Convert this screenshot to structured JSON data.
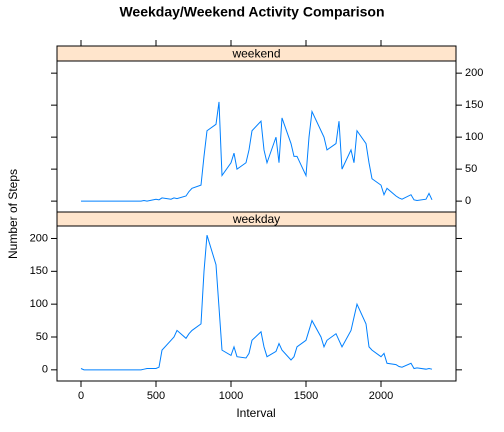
{
  "chart_data": {
    "type": "line",
    "title": "Weekday/Weekend Activity Comparison",
    "x_label": "Interval",
    "y_label": "Number of Steps",
    "color": "#0080ff",
    "strip_color": "#ffe5cc",
    "xlim": [
      -160,
      2500
    ],
    "ylim": [
      -17,
      219
    ],
    "xticks": [
      0,
      500,
      1000,
      1500,
      2000
    ],
    "yticks": [
      0,
      50,
      100,
      150,
      200
    ],
    "x": [
      0,
      20,
      40,
      100,
      120,
      140,
      200,
      220,
      240,
      300,
      320,
      340,
      400,
      420,
      440,
      500,
      520,
      540,
      600,
      620,
      640,
      700,
      720,
      740,
      800,
      820,
      840,
      900,
      920,
      940,
      1000,
      1020,
      1040,
      1100,
      1120,
      1140,
      1200,
      1220,
      1240,
      1300,
      1320,
      1340,
      1400,
      1420,
      1440,
      1500,
      1520,
      1540,
      1600,
      1620,
      1640,
      1700,
      1720,
      1740,
      1800,
      1820,
      1840,
      1900,
      1920,
      1940,
      2000,
      2020,
      2040,
      2100,
      2120,
      2140,
      2200,
      2220,
      2240,
      2300,
      2320,
      2340
    ],
    "panels": [
      {
        "name": "weekend",
        "values": [
          0,
          0,
          0,
          0,
          0,
          0,
          0,
          0,
          0,
          0,
          0,
          0,
          0,
          1,
          0,
          3,
          2,
          5,
          3,
          5,
          4,
          8,
          15,
          20,
          25,
          70,
          110,
          120,
          155,
          40,
          60,
          75,
          50,
          60,
          80,
          110,
          125,
          80,
          60,
          100,
          60,
          130,
          90,
          70,
          70,
          40,
          100,
          140,
          110,
          100,
          80,
          90,
          125,
          50,
          80,
          60,
          110,
          90,
          60,
          35,
          25,
          10,
          20,
          8,
          5,
          3,
          10,
          2,
          1,
          3,
          12,
          2
        ]
      },
      {
        "name": "weekday",
        "values": [
          2,
          0,
          0,
          0,
          0,
          0,
          0,
          0,
          0,
          0,
          0,
          0,
          0,
          1,
          2,
          2,
          4,
          30,
          45,
          50,
          60,
          48,
          55,
          60,
          70,
          150,
          205,
          160,
          95,
          30,
          22,
          35,
          20,
          18,
          25,
          45,
          58,
          35,
          20,
          28,
          40,
          30,
          15,
          20,
          35,
          45,
          60,
          75,
          50,
          35,
          45,
          55,
          45,
          35,
          60,
          80,
          100,
          70,
          35,
          30,
          20,
          25,
          10,
          8,
          5,
          4,
          10,
          2,
          3,
          1,
          2,
          1
        ]
      }
    ]
  }
}
